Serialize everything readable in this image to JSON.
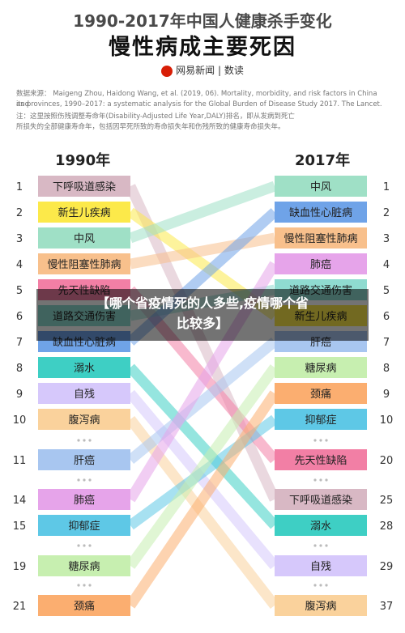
{
  "header": {
    "title": "1990-2017年中国人健康杀手变化",
    "subtitle": "慢性病成主要死因",
    "brand": "网易新闻 | 数读",
    "brand_icon": "netease-logo-icon"
  },
  "source_note": {
    "line1": "数据来源： Maigeng Zhou, Haidong Wang, et al. (2019, 06). Mortality, morbidity, and risk factors in China and",
    "line2": "its provinces, 1990–2017: a systematic analysis for the Global Burden of Disease Study 2017. The Lancet.",
    "line3": "注：这里按照伤残调整寿命年(Disability-Adjusted Life Year,DALY)排名，即从发病到死亡",
    "line4": "所损失的全部健康寿命年，包括因早死所致的寿命损失年和伤残所致的健康寿命损失年。"
  },
  "overlay": {
    "line1": "【哪个省疫情死的人多些,疫情哪个省",
    "line2": "比较多】"
  },
  "chart_data": {
    "type": "slope-ranking",
    "left_year": "1990年",
    "right_year": "2017年",
    "left": [
      {
        "rank": 1,
        "label": "下呼吸道感染",
        "color": "#d8b8c4"
      },
      {
        "rank": 2,
        "label": "新生儿疾病",
        "color": "#fce94a"
      },
      {
        "rank": 3,
        "label": "中风",
        "color": "#9fe0c6"
      },
      {
        "rank": 4,
        "label": "慢性阻塞性肺病",
        "color": "#f8c08c"
      },
      {
        "rank": 5,
        "label": "先天性缺陷",
        "color": "#f27fa5"
      },
      {
        "rank": 6,
        "label": "道路交通伤害",
        "color": "#8fdbd0"
      },
      {
        "rank": 7,
        "label": "缺血性心脏病",
        "color": "#6fa3e8"
      },
      {
        "rank": 8,
        "label": "溺水",
        "color": "#3ecfc4"
      },
      {
        "rank": 9,
        "label": "自残",
        "color": "#d6c8fb"
      },
      {
        "rank": 10,
        "label": "腹泻病",
        "color": "#fad29c"
      },
      {
        "rank": 11,
        "label": "肝癌",
        "color": "#a8c6f0"
      },
      {
        "rank": 14,
        "label": "肺癌",
        "color": "#e6a4ea"
      },
      {
        "rank": 15,
        "label": "抑郁症",
        "color": "#5ec8e6"
      },
      {
        "rank": 19,
        "label": "糖尿病",
        "color": "#c7efb0"
      },
      {
        "rank": 21,
        "label": "颈痛",
        "color": "#fbae70"
      }
    ],
    "right": [
      {
        "rank": 1,
        "label": "中风",
        "color": "#9fe0c6"
      },
      {
        "rank": 2,
        "label": "缺血性心脏病",
        "color": "#6fa3e8"
      },
      {
        "rank": 3,
        "label": "慢性阻塞性肺病",
        "color": "#f8c08c"
      },
      {
        "rank": 4,
        "label": "肺癌",
        "color": "#e6a4ea"
      },
      {
        "rank": 5,
        "label": "道路交通伤害",
        "color": "#8fdbd0"
      },
      {
        "rank": 6,
        "label": "新生儿疾病",
        "color": "#fce94a"
      },
      {
        "rank": 7,
        "label": "肝癌",
        "color": "#a8c6f0"
      },
      {
        "rank": 8,
        "label": "糖尿病",
        "color": "#c7efb0"
      },
      {
        "rank": 9,
        "label": "颈痛",
        "color": "#fbae70"
      },
      {
        "rank": 10,
        "label": "抑郁症",
        "color": "#5ec8e6"
      },
      {
        "rank": 20,
        "label": "先天性缺陷",
        "color": "#f27fa5"
      },
      {
        "rank": 25,
        "label": "下呼吸道感染",
        "color": "#d8b8c4"
      },
      {
        "rank": 28,
        "label": "溺水",
        "color": "#3ecfc4"
      },
      {
        "rank": 29,
        "label": "自残",
        "color": "#d6c8fb"
      },
      {
        "rank": 37,
        "label": "腹泻病",
        "color": "#fad29c"
      }
    ]
  }
}
